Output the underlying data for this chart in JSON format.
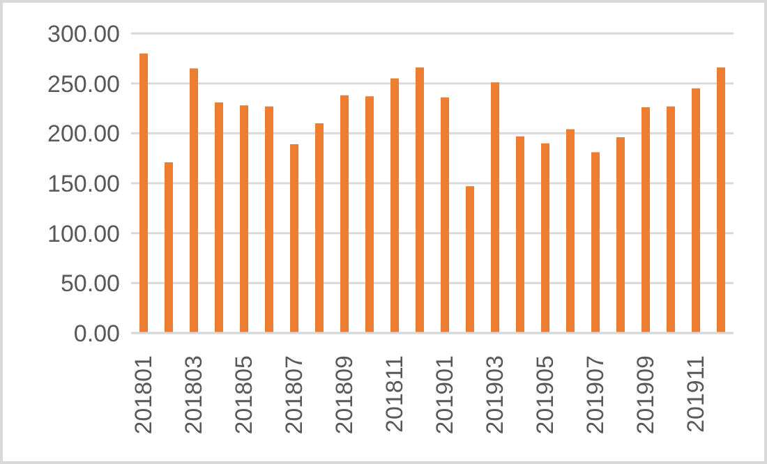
{
  "chart_data": {
    "type": "bar",
    "categories": [
      "201801",
      null,
      "201803",
      null,
      "201805",
      null,
      "201807",
      null,
      "201809",
      null,
      "201811",
      null,
      "201901",
      null,
      "201903",
      null,
      "201905",
      null,
      "201907",
      null,
      "201909",
      null,
      "201911",
      null
    ],
    "values": [
      280,
      171,
      265,
      231,
      228,
      227,
      189,
      210,
      238,
      237,
      255,
      266,
      236,
      147,
      251,
      197,
      190,
      204,
      181,
      196,
      226,
      227,
      245,
      266
    ],
    "color": "#ed7d31",
    "ylim": [
      0,
      300
    ],
    "yticks": [
      {
        "value": 0,
        "label": "0.00"
      },
      {
        "value": 50,
        "label": "50.00"
      },
      {
        "value": 100,
        "label": "100.00"
      },
      {
        "value": 150,
        "label": "150.00"
      },
      {
        "value": 200,
        "label": "200.00"
      },
      {
        "value": 250,
        "label": "250.00"
      },
      {
        "value": 300,
        "label": "300.00"
      }
    ],
    "grid": "y"
  }
}
